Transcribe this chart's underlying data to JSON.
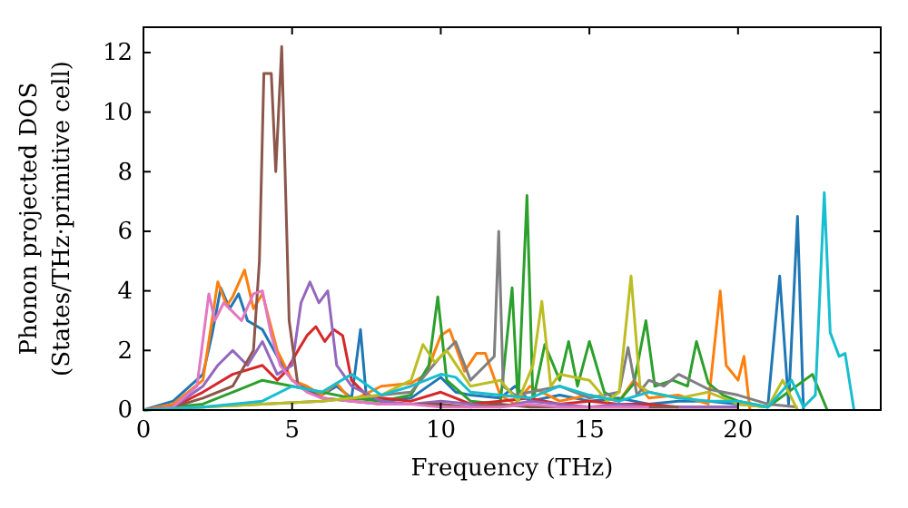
{
  "chart_data": {
    "type": "line",
    "xlabel": "Frequency (THz)",
    "ylabel": "Phonon projected DOS\n(States/THz·primitive cell)",
    "xlim": [
      0,
      24.8
    ],
    "ylim": [
      0,
      12.85
    ],
    "xticks": [
      0,
      5,
      10,
      15,
      20
    ],
    "yticks": [
      0,
      2,
      4,
      6,
      8,
      10,
      12
    ],
    "grid": false,
    "series": [
      {
        "color": "#1f77b4",
        "x": [
          0,
          1,
          2,
          2.3,
          2.6,
          2.9,
          3.2,
          3.5,
          4,
          4.5,
          5,
          5.5,
          6,
          6.5,
          7,
          7.3,
          7.5,
          8,
          9,
          10,
          10.5,
          11,
          12,
          12.5,
          13,
          14,
          15,
          16,
          17,
          18,
          19,
          20,
          21,
          21.4,
          21.7,
          22.0,
          22.2
        ],
        "values": [
          0,
          0.3,
          1.2,
          2.5,
          4.1,
          3.4,
          3.9,
          3.0,
          2.7,
          1.8,
          1.0,
          0.7,
          0.5,
          0.8,
          0.4,
          2.7,
          0.4,
          0.3,
          0.4,
          1.1,
          0.6,
          0.5,
          0.4,
          0.8,
          0.3,
          0.5,
          0.3,
          0.4,
          0.2,
          0.3,
          0.3,
          0.2,
          0.1,
          4.5,
          0.2,
          6.5,
          0
        ]
      },
      {
        "color": "#ff7f0e",
        "x": [
          0,
          1,
          2,
          2.5,
          2.8,
          3,
          3.4,
          3.7,
          4,
          4.5,
          5,
          5.5,
          6,
          6.5,
          7,
          8,
          9,
          9.5,
          10,
          10.3,
          10.8,
          11.2,
          11.5,
          12,
          12.5,
          13,
          14,
          15,
          16,
          16.5,
          17,
          18,
          19,
          19.4,
          19.6,
          20,
          20.2,
          20.4
        ],
        "values": [
          0,
          0.2,
          1.0,
          4.3,
          3.5,
          3.8,
          4.7,
          3.4,
          3.9,
          2.0,
          1.0,
          0.8,
          0.5,
          0.9,
          0.3,
          0.8,
          0.9,
          1.2,
          2.5,
          2.7,
          1.3,
          1.9,
          1.9,
          0.5,
          0.2,
          0.8,
          0.3,
          0.5,
          0.3,
          1.0,
          0.4,
          0.5,
          0.2,
          4.0,
          1.5,
          1.0,
          1.8,
          0
        ]
      },
      {
        "color": "#2ca02c",
        "x": [
          0,
          2,
          3,
          4,
          5,
          6,
          7,
          8,
          9,
          9.6,
          9.9,
          10.2,
          11,
          12,
          12.4,
          12.6,
          12.9,
          13.1,
          13.5,
          14,
          14.3,
          14.6,
          15,
          15.5,
          16,
          16.5,
          16.9,
          17.2,
          17.8,
          18.3,
          18.6,
          19,
          19.5,
          20,
          21,
          22.5,
          23
        ],
        "values": [
          0,
          0.2,
          0.6,
          1.0,
          0.8,
          0.6,
          0.4,
          0.3,
          0.5,
          1.5,
          3.8,
          1.0,
          0.3,
          0.2,
          4.1,
          0.2,
          7.2,
          0.3,
          2.2,
          1.0,
          2.3,
          0.8,
          2.3,
          0.6,
          0.3,
          0.9,
          3.0,
          0.8,
          1.0,
          0.8,
          2.3,
          0.9,
          0.5,
          0.3,
          0.1,
          1.2,
          0
        ]
      },
      {
        "color": "#d62728",
        "x": [
          0,
          1,
          2,
          3,
          4,
          4.5,
          4.8,
          5.2,
          5.5,
          5.8,
          6.1,
          6.4,
          6.7,
          7,
          7.5,
          8,
          9,
          10,
          11,
          12,
          13,
          14,
          15,
          16,
          17,
          18,
          19,
          20
        ],
        "values": [
          0,
          0.1,
          0.6,
          1.2,
          1.5,
          1.0,
          1.3,
          2.0,
          2.5,
          2.8,
          2.3,
          2.7,
          2.5,
          1.0,
          0.5,
          0.4,
          0.3,
          0.6,
          0.2,
          0.3,
          0.4,
          0.2,
          0.3,
          0.2,
          0.2,
          0.1,
          0.1,
          0.1
        ]
      },
      {
        "color": "#9467bd",
        "x": [
          0,
          1,
          2,
          2.5,
          3,
          3.5,
          4,
          4.5,
          5,
          5.3,
          5.6,
          5.9,
          6.2,
          6.5,
          7,
          8,
          9,
          10,
          11,
          12,
          13,
          14,
          15,
          16,
          17,
          18,
          19,
          20
        ],
        "values": [
          0,
          0.1,
          0.8,
          1.5,
          2.0,
          1.5,
          2.3,
          1.2,
          1.5,
          3.6,
          4.3,
          3.6,
          4.0,
          1.5,
          0.8,
          0.3,
          0.2,
          0.3,
          0.2,
          0.1,
          0.3,
          0.2,
          0.1,
          0.2,
          0.1,
          0.1,
          0.1,
          0.1
        ]
      },
      {
        "color": "#8c564b",
        "x": [
          0,
          1,
          2,
          3,
          3.7,
          3.9,
          4.05,
          4.3,
          4.45,
          4.65,
          4.9,
          5.2,
          6,
          7,
          8,
          9,
          10,
          11,
          12,
          13,
          14,
          15,
          16,
          17,
          18
        ],
        "values": [
          0,
          0.1,
          0.4,
          0.8,
          2.0,
          5.0,
          11.3,
          11.3,
          8.0,
          12.2,
          3.0,
          0.8,
          0.4,
          0.3,
          0.2,
          0.2,
          0.2,
          0.1,
          0.2,
          0.1,
          0.1,
          0.1,
          0.1,
          0.1,
          0.1
        ]
      },
      {
        "color": "#e377c2",
        "x": [
          0,
          1,
          1.8,
          2.2,
          2.4,
          2.7,
          3,
          3.3,
          3.7,
          4,
          4.3,
          4.6,
          5,
          5.5,
          6,
          7,
          8,
          9,
          10,
          11,
          12,
          13,
          14,
          15,
          16,
          17
        ],
        "values": [
          0,
          0.1,
          0.8,
          3.9,
          3.0,
          3.6,
          3.3,
          3.0,
          3.9,
          4.0,
          2.5,
          1.5,
          1.0,
          0.6,
          0.4,
          0.3,
          0.2,
          0.2,
          0.1,
          0.1,
          0.1,
          0.2,
          0.1,
          0.1,
          0.1,
          0.1
        ]
      },
      {
        "color": "#7f7f7f",
        "x": [
          0,
          2,
          4,
          6,
          8,
          9,
          10,
          10.5,
          11,
          11.5,
          11.8,
          11.95,
          12.1,
          12.5,
          13,
          14,
          15,
          16,
          16.3,
          16.6,
          17,
          17.5,
          18,
          19,
          20,
          21,
          22
        ],
        "values": [
          0,
          0.1,
          0.2,
          0.3,
          0.5,
          0.6,
          1.8,
          2.3,
          1.0,
          1.5,
          1.8,
          6.0,
          0.8,
          0.5,
          0.6,
          0.8,
          0.4,
          0.6,
          2.1,
          0.5,
          1.0,
          0.8,
          1.2,
          0.7,
          0.5,
          0.2,
          0.1
        ]
      },
      {
        "color": "#bcbd22",
        "x": [
          0,
          2,
          4,
          6,
          8,
          9,
          9.4,
          9.8,
          10.2,
          11,
          12,
          12.6,
          13.1,
          13.4,
          13.7,
          14,
          15,
          15.6,
          16,
          16.4,
          16.7,
          17,
          18,
          19,
          20,
          21,
          21.5,
          22
        ],
        "values": [
          0,
          0.1,
          0.2,
          0.3,
          0.5,
          1.0,
          2.2,
          1.6,
          2.0,
          0.8,
          1.0,
          0.3,
          1.5,
          3.65,
          0.8,
          1.2,
          1.0,
          0.3,
          0.6,
          4.5,
          0.8,
          0.6,
          0.4,
          0.6,
          0.2,
          0.1,
          1.0,
          0
        ]
      },
      {
        "color": "#17becf",
        "x": [
          0,
          2,
          4,
          5,
          6,
          7,
          8,
          9,
          10,
          10.5,
          11,
          12,
          13,
          14,
          15,
          16,
          17,
          18,
          19,
          20,
          21,
          21.8,
          22.2,
          22.6,
          22.9,
          23.1,
          23.4,
          23.6,
          23.9
        ],
        "values": [
          0,
          0.1,
          0.3,
          0.8,
          0.6,
          1.2,
          0.5,
          0.8,
          1.2,
          1.1,
          0.6,
          0.5,
          0.4,
          0.8,
          0.5,
          0.3,
          0.6,
          0.4,
          0.3,
          0.3,
          0.1,
          1.0,
          0.1,
          0.5,
          7.3,
          2.6,
          1.8,
          1.9,
          0
        ]
      }
    ]
  }
}
